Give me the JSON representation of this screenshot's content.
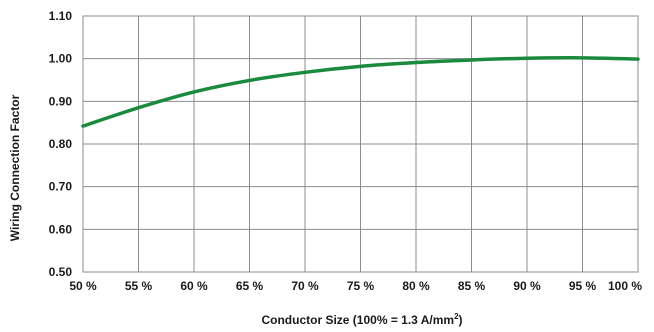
{
  "chart_data": {
    "type": "line",
    "title": "",
    "xlabel": "Conductor Size (100% = 1.3 A/mm",
    "xlabel_superscript": "2",
    "xlabel_suffix": ")",
    "ylabel": "Wiring Connection Factor",
    "x_categories": [
      "50 %",
      "55 %",
      "60 %",
      "65 %",
      "70 %",
      "75 %",
      "80 %",
      "85 %",
      "90 %",
      "95 %",
      "100 %"
    ],
    "y_ticks": [
      "0.50",
      "0.60",
      "0.70",
      "0.80",
      "0.90",
      "1.00",
      "1.10"
    ],
    "xlim": [
      50,
      100
    ],
    "ylim": [
      0.5,
      1.1
    ],
    "grid": true,
    "series": [
      {
        "color": "#1a8a3c",
        "x": [
          50,
          55,
          60,
          65,
          70,
          75,
          80,
          85,
          90,
          95,
          100
        ],
        "y": [
          0.842,
          0.885,
          0.922,
          0.949,
          0.968,
          0.982,
          0.991,
          0.997,
          1.001,
          1.002,
          0.999
        ]
      }
    ]
  }
}
